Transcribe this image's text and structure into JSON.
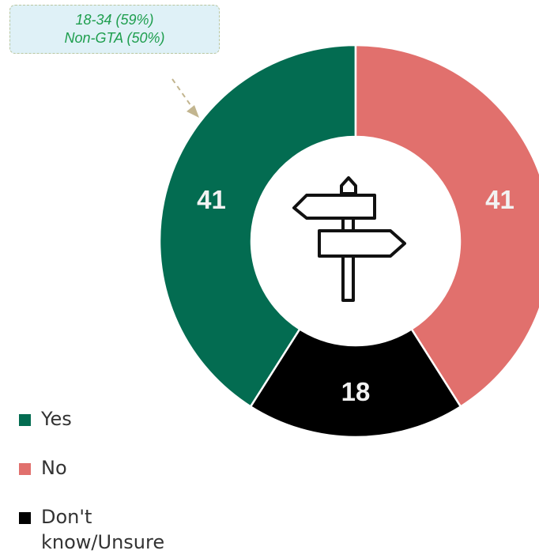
{
  "colors": {
    "yes": "#036c51",
    "no": "#e1706d",
    "unsure": "#000000",
    "segment_label": "#f2f2f2",
    "icon": "#111111"
  },
  "callout": {
    "line1": "18-34 (59%)",
    "line2": "Non-GTA (50%)"
  },
  "center_icon": "signpost-icon",
  "chart_data": {
    "type": "donut",
    "segments": [
      {
        "label": "Yes",
        "value": 41
      },
      {
        "label": "No",
        "value": 41
      },
      {
        "label": "Don't know/Unsure",
        "value": 18
      }
    ],
    "value_labels": [
      "41",
      "41",
      "18"
    ],
    "legend": [
      "Yes",
      "No",
      "Don't know/Unsure"
    ],
    "legend_position": "bottom-left"
  }
}
